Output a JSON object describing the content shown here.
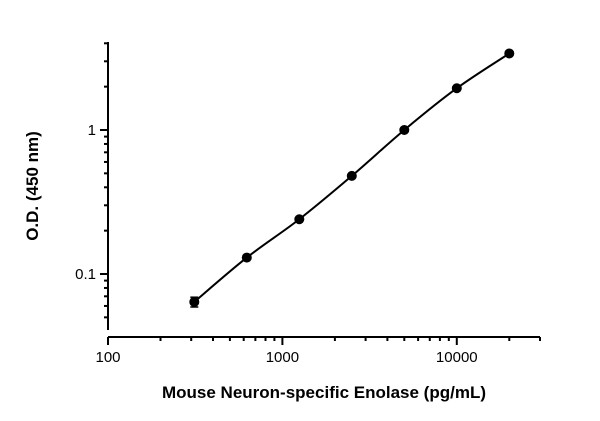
{
  "chart_data": {
    "type": "scatter",
    "title": "",
    "xlabel": "Mouse Neuron-specific Enolase (pg/mL)",
    "ylabel": "O.D. (450 nm)",
    "x_scale": "log",
    "y_scale": "log",
    "xlim": [
      100,
      30000
    ],
    "ylim": [
      0.04,
      4
    ],
    "x_ticks": [
      {
        "value": 100,
        "label": "100"
      },
      {
        "value": 1000,
        "label": "1000"
      },
      {
        "value": 10000,
        "label": "10000"
      }
    ],
    "y_ticks": [
      {
        "value": 0.1,
        "label": "0.1"
      },
      {
        "value": 1,
        "label": "1"
      }
    ],
    "grid": false,
    "legend": "none",
    "series": [
      {
        "x": [
          312.5,
          625,
          1250,
          2500,
          5000,
          10000,
          20000
        ],
        "y": [
          0.064,
          0.13,
          0.24,
          0.48,
          1.0,
          1.95,
          3.4
        ],
        "error": [
          0.005,
          0,
          0,
          0,
          0,
          0,
          0
        ],
        "fit_line": true
      }
    ],
    "colors": {
      "axis": "#000000",
      "marker": "#000000",
      "line": "#000000"
    }
  }
}
